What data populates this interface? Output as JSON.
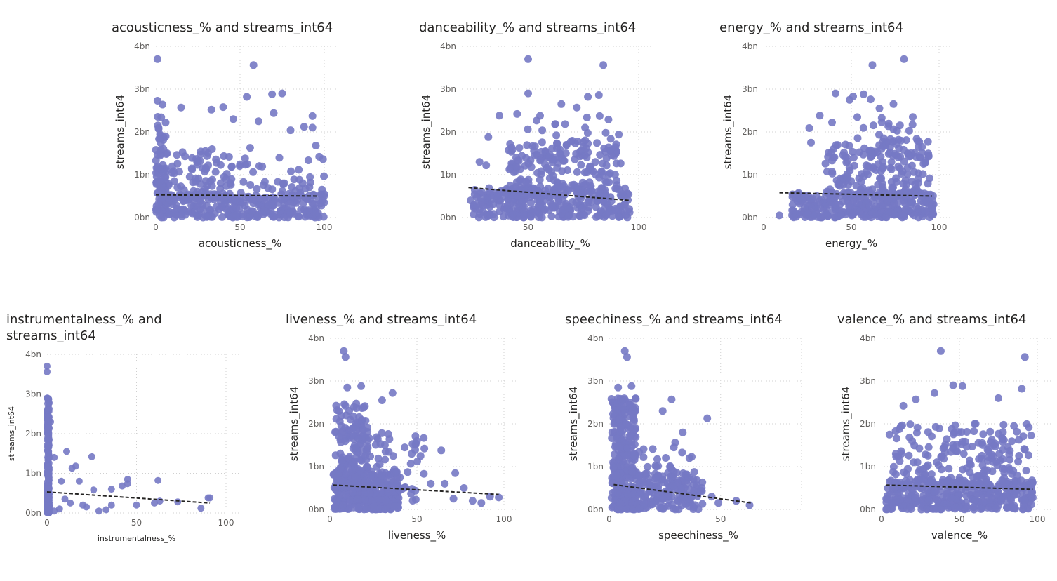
{
  "charts": [
    {
      "id": "acousticness",
      "title": "acousticness_% and streams_int64",
      "chart_data": {
        "type": "scatter",
        "title": "acousticness_% and streams_int64",
        "xlabel": "acousticness_%",
        "ylabel": "streams_int64",
        "xlim": [
          0,
          100
        ],
        "ylim": [
          0,
          4
        ],
        "xticks": [
          "0",
          "50",
          "100"
        ],
        "yticks": [
          "0bn",
          "1bn",
          "2bn",
          "3bn",
          "4bn"
        ],
        "grid": true,
        "trendline": {
          "x": [
            0,
            97
          ],
          "y": [
            0.53,
            0.5
          ]
        },
        "outliers": [
          {
            "x": 1,
            "y": 3.7
          },
          {
            "x": 58,
            "y": 3.56
          },
          {
            "x": 69,
            "y": 2.88
          },
          {
            "x": 75,
            "y": 2.9
          },
          {
            "x": 54,
            "y": 2.82
          },
          {
            "x": 1,
            "y": 2.73
          },
          {
            "x": 4,
            "y": 2.64
          },
          {
            "x": 15,
            "y": 2.57
          },
          {
            "x": 33,
            "y": 2.52
          },
          {
            "x": 40,
            "y": 2.58
          },
          {
            "x": 93,
            "y": 2.37
          },
          {
            "x": 70,
            "y": 2.44
          },
          {
            "x": 61,
            "y": 2.25
          },
          {
            "x": 46,
            "y": 2.3
          },
          {
            "x": 88,
            "y": 2.12
          },
          {
            "x": 80,
            "y": 2.04
          },
          {
            "x": 93,
            "y": 2.1
          },
          {
            "x": 56,
            "y": 1.63
          },
          {
            "x": 95,
            "y": 1.68
          },
          {
            "x": 97,
            "y": 1.42
          }
        ],
        "clusters": [
          {
            "x0": 0,
            "x1": 100,
            "y0": 0,
            "y1": 0.55,
            "n": 280
          },
          {
            "x0": 0,
            "x1": 45,
            "y0": 0.4,
            "y1": 1.6,
            "n": 110
          },
          {
            "x0": 0,
            "x1": 6,
            "y0": 0.5,
            "y1": 2.4,
            "n": 45
          },
          {
            "x0": 40,
            "x1": 100,
            "y0": 0.4,
            "y1": 1.4,
            "n": 60
          }
        ]
      }
    },
    {
      "id": "danceability",
      "title": "danceability_% and streams_int64",
      "chart_data": {
        "type": "scatter",
        "title": "danceability_% and streams_int64",
        "xlabel": "danceability_%",
        "ylabel": "streams_int64",
        "xlim": [
          20,
          100
        ],
        "ylim": [
          0,
          4
        ],
        "xticks": [
          "50",
          "100"
        ],
        "yticks": [
          "0bn",
          "1bn",
          "2bn",
          "3bn",
          "4bn"
        ],
        "grid": true,
        "trendline": {
          "x": [
            23,
            96
          ],
          "y": [
            0.7,
            0.4
          ]
        },
        "outliers": [
          {
            "x": 50,
            "y": 3.7
          },
          {
            "x": 84,
            "y": 3.56
          },
          {
            "x": 50,
            "y": 2.9
          },
          {
            "x": 82,
            "y": 2.86
          },
          {
            "x": 77,
            "y": 2.82
          },
          {
            "x": 65,
            "y": 2.65
          },
          {
            "x": 45,
            "y": 2.42
          },
          {
            "x": 37,
            "y": 2.38
          },
          {
            "x": 72,
            "y": 2.57
          },
          {
            "x": 91,
            "y": 1.94
          },
          {
            "x": 32,
            "y": 1.88
          },
          {
            "x": 28,
            "y": 1.3
          },
          {
            "x": 24,
            "y": 0.4
          },
          {
            "x": 31,
            "y": 1.22
          }
        ],
        "clusters": [
          {
            "x0": 25,
            "x1": 96,
            "y0": 0,
            "y1": 0.7,
            "n": 300
          },
          {
            "x0": 40,
            "x1": 92,
            "y0": 0.5,
            "y1": 1.8,
            "n": 170
          },
          {
            "x0": 45,
            "x1": 90,
            "y0": 1.3,
            "y1": 2.4,
            "n": 45
          }
        ]
      }
    },
    {
      "id": "energy",
      "title": "energy_% and streams_int64",
      "chart_data": {
        "type": "scatter",
        "title": "energy_% and streams_int64",
        "xlabel": "energy_%",
        "ylabel": "streams_int64",
        "xlim": [
          0,
          100
        ],
        "ylim": [
          0,
          4
        ],
        "xticks": [
          "0",
          "50",
          "100"
        ],
        "yticks": [
          "0bn",
          "1bn",
          "2bn",
          "3bn",
          "4bn"
        ],
        "grid": true,
        "trendline": {
          "x": [
            9,
            96
          ],
          "y": [
            0.58,
            0.5
          ]
        },
        "outliers": [
          {
            "x": 80,
            "y": 3.7
          },
          {
            "x": 62,
            "y": 3.56
          },
          {
            "x": 41,
            "y": 2.9
          },
          {
            "x": 57,
            "y": 2.88
          },
          {
            "x": 51,
            "y": 2.83
          },
          {
            "x": 49,
            "y": 2.75
          },
          {
            "x": 61,
            "y": 2.76
          },
          {
            "x": 74,
            "y": 2.65
          },
          {
            "x": 66,
            "y": 2.55
          },
          {
            "x": 32,
            "y": 2.38
          },
          {
            "x": 39,
            "y": 2.22
          },
          {
            "x": 26,
            "y": 2.09
          },
          {
            "x": 9,
            "y": 0.05
          },
          {
            "x": 22,
            "y": 0.4
          },
          {
            "x": 27,
            "y": 1.75
          },
          {
            "x": 85,
            "y": 2.35
          }
        ],
        "clusters": [
          {
            "x0": 15,
            "x1": 97,
            "y0": 0,
            "y1": 0.6,
            "n": 300
          },
          {
            "x0": 35,
            "x1": 95,
            "y0": 0.5,
            "y1": 1.8,
            "n": 180
          },
          {
            "x0": 45,
            "x1": 90,
            "y0": 1.4,
            "y1": 2.4,
            "n": 40
          }
        ]
      }
    },
    {
      "id": "instrumentalness",
      "title": "instrumentalness_% and streams_int64",
      "chart_data": {
        "type": "scatter",
        "title": "instrumentalness_% and streams_int64",
        "xlabel": "instrumentalness_%",
        "ylabel": "streams_int64",
        "xlim": [
          0,
          100
        ],
        "ylim": [
          0,
          4
        ],
        "xticks": [
          "0",
          "50",
          "100"
        ],
        "yticks": [
          "0bn",
          "1bn",
          "2bn",
          "3bn",
          "4bn"
        ],
        "grid": true,
        "trendline": {
          "x": [
            0,
            91
          ],
          "y": [
            0.53,
            0.25
          ]
        },
        "outliers": [
          {
            "x": 0,
            "y": 3.7
          },
          {
            "x": 0,
            "y": 3.56
          },
          {
            "x": 11,
            "y": 1.55
          },
          {
            "x": 16,
            "y": 1.18
          },
          {
            "x": 14,
            "y": 1.13
          },
          {
            "x": 25,
            "y": 1.42
          },
          {
            "x": 45,
            "y": 0.85
          },
          {
            "x": 62,
            "y": 0.82
          },
          {
            "x": 42,
            "y": 0.68
          },
          {
            "x": 45,
            "y": 0.74
          },
          {
            "x": 36,
            "y": 0.6
          },
          {
            "x": 26,
            "y": 0.58
          },
          {
            "x": 18,
            "y": 0.8
          },
          {
            "x": 4,
            "y": 1.4
          },
          {
            "x": 8,
            "y": 0.8
          },
          {
            "x": 90,
            "y": 0.38
          },
          {
            "x": 91,
            "y": 0.38
          },
          {
            "x": 86,
            "y": 0.12
          },
          {
            "x": 73,
            "y": 0.28
          },
          {
            "x": 63,
            "y": 0.3
          },
          {
            "x": 60,
            "y": 0.25
          },
          {
            "x": 50,
            "y": 0.2
          },
          {
            "x": 33,
            "y": 0.08
          },
          {
            "x": 29,
            "y": 0.05
          },
          {
            "x": 22,
            "y": 0.15
          },
          {
            "x": 20,
            "y": 0.2
          },
          {
            "x": 13,
            "y": 0.25
          },
          {
            "x": 10,
            "y": 0.35
          },
          {
            "x": 7,
            "y": 0.1
          },
          {
            "x": 4,
            "y": 0.05
          },
          {
            "x": 36,
            "y": 0.2
          },
          {
            "x": 2,
            "y": 2.3
          }
        ],
        "clusters": [
          {
            "x0": 0,
            "x1": 1.2,
            "y0": 0,
            "y1": 2.9,
            "n": 200
          },
          {
            "x0": 0,
            "x1": 1.2,
            "y0": 0,
            "y1": 0.7,
            "n": 150
          }
        ]
      }
    },
    {
      "id": "liveness",
      "title": "liveness_% and streams_int64",
      "chart_data": {
        "type": "scatter",
        "title": "liveness_% and streams_int64",
        "xlabel": "liveness_%",
        "ylabel": "streams_int64",
        "xlim": [
          0,
          100
        ],
        "ylim": [
          0,
          4
        ],
        "xticks": [
          "0",
          "50",
          "100"
        ],
        "yticks": [
          "0bn",
          "1bn",
          "2bn",
          "3bn",
          "4bn"
        ],
        "grid": true,
        "trendline": {
          "x": [
            2,
            97
          ],
          "y": [
            0.57,
            0.35
          ]
        },
        "outliers": [
          {
            "x": 8,
            "y": 3.7
          },
          {
            "x": 9,
            "y": 3.56
          },
          {
            "x": 18,
            "y": 2.88
          },
          {
            "x": 36,
            "y": 2.72
          },
          {
            "x": 30,
            "y": 2.55
          },
          {
            "x": 10,
            "y": 2.85
          },
          {
            "x": 50,
            "y": 1.6
          },
          {
            "x": 64,
            "y": 1.38
          },
          {
            "x": 72,
            "y": 0.85
          },
          {
            "x": 66,
            "y": 0.6
          },
          {
            "x": 77,
            "y": 0.5
          },
          {
            "x": 92,
            "y": 0.3
          },
          {
            "x": 97,
            "y": 0.28
          },
          {
            "x": 87,
            "y": 0.15
          },
          {
            "x": 82,
            "y": 0.2
          },
          {
            "x": 71,
            "y": 0.25
          },
          {
            "x": 58,
            "y": 0.6
          },
          {
            "x": 47,
            "y": 1.3
          },
          {
            "x": 43,
            "y": 1.45
          }
        ],
        "clusters": [
          {
            "x0": 2,
            "x1": 40,
            "y0": 0,
            "y1": 0.9,
            "n": 320
          },
          {
            "x0": 3,
            "x1": 22,
            "y0": 0.5,
            "y1": 2.5,
            "n": 170
          },
          {
            "x0": 20,
            "x1": 55,
            "y0": 0.2,
            "y1": 1.8,
            "n": 60
          }
        ]
      }
    },
    {
      "id": "speechiness",
      "title": "speechiness_% and streams_int64",
      "chart_data": {
        "type": "scatter",
        "title": "speechiness_% and streams_int64",
        "xlabel": "speechiness_%",
        "ylabel": "streams_int64",
        "xlim": [
          0,
          80
        ],
        "ylim": [
          0,
          4
        ],
        "xticks": [
          "0",
          "50"
        ],
        "yticks": [
          "0bn",
          "1bn",
          "2bn",
          "3bn",
          "4bn"
        ],
        "grid": true,
        "trendline": {
          "x": [
            2,
            64
          ],
          "y": [
            0.58,
            0.15
          ]
        },
        "outliers": [
          {
            "x": 7,
            "y": 3.7
          },
          {
            "x": 8,
            "y": 3.56
          },
          {
            "x": 10,
            "y": 2.88
          },
          {
            "x": 4,
            "y": 2.85
          },
          {
            "x": 28,
            "y": 2.57
          },
          {
            "x": 24,
            "y": 2.3
          },
          {
            "x": 44,
            "y": 2.13
          },
          {
            "x": 33,
            "y": 1.8
          },
          {
            "x": 29,
            "y": 1.45
          },
          {
            "x": 36,
            "y": 1.2
          },
          {
            "x": 37,
            "y": 1.23
          },
          {
            "x": 57,
            "y": 0.2
          },
          {
            "x": 63,
            "y": 0.1
          },
          {
            "x": 49,
            "y": 0.15
          },
          {
            "x": 46,
            "y": 0.3
          }
        ],
        "clusters": [
          {
            "x0": 1,
            "x1": 12,
            "y0": 0,
            "y1": 2.6,
            "n": 320
          },
          {
            "x0": 10,
            "x1": 42,
            "y0": 0,
            "y1": 0.9,
            "n": 160
          },
          {
            "x0": 10,
            "x1": 35,
            "y0": 0.5,
            "y1": 1.6,
            "n": 40
          }
        ]
      }
    },
    {
      "id": "valence",
      "title": "valence_% and streams_int64",
      "chart_data": {
        "type": "scatter",
        "title": "valence_% and streams_int64",
        "xlabel": "valence_%",
        "ylabel": "streams_int64",
        "xlim": [
          0,
          100
        ],
        "ylim": [
          0,
          4
        ],
        "xticks": [
          "0",
          "50",
          "100"
        ],
        "yticks": [
          "0bn",
          "1bn",
          "2bn",
          "3bn",
          "4bn"
        ],
        "grid": true,
        "trendline": {
          "x": [
            3,
            97
          ],
          "y": [
            0.57,
            0.47
          ]
        },
        "outliers": [
          {
            "x": 38,
            "y": 3.7
          },
          {
            "x": 92,
            "y": 3.56
          },
          {
            "x": 46,
            "y": 2.9
          },
          {
            "x": 52,
            "y": 2.88
          },
          {
            "x": 90,
            "y": 2.82
          },
          {
            "x": 34,
            "y": 2.72
          },
          {
            "x": 75,
            "y": 2.6
          },
          {
            "x": 22,
            "y": 2.57
          },
          {
            "x": 14,
            "y": 2.42
          },
          {
            "x": 9,
            "y": 1.83
          },
          {
            "x": 96,
            "y": 1.73
          },
          {
            "x": 85,
            "y": 1.95
          }
        ],
        "clusters": [
          {
            "x0": 3,
            "x1": 98,
            "y0": 0,
            "y1": 0.7,
            "n": 330
          },
          {
            "x0": 5,
            "x1": 95,
            "y0": 0.5,
            "y1": 2.0,
            "n": 200
          }
        ]
      }
    }
  ],
  "colors": {
    "points": "#7579c4",
    "trend": "#252423",
    "grid": "#d0d0d0",
    "text": "#252423",
    "ticks": "#605e5c"
  }
}
